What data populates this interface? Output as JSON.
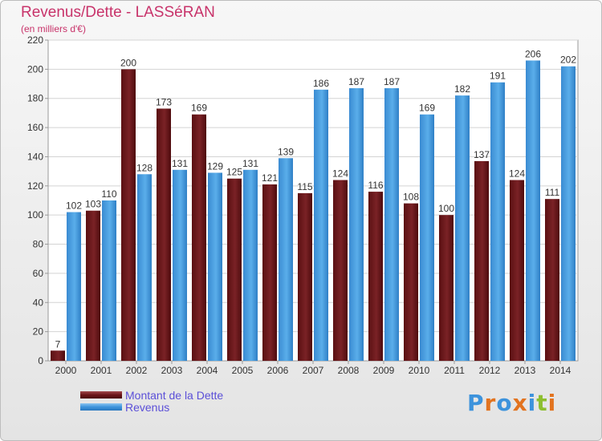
{
  "chart_data": {
    "type": "bar",
    "title": "Revenus/Dette - LASSéRAN",
    "subtitle": "(en milliers d'€)",
    "categories": [
      "2000",
      "2001",
      "2002",
      "2003",
      "2004",
      "2005",
      "2006",
      "2007",
      "2008",
      "2009",
      "2010",
      "2011",
      "2012",
      "2013",
      "2014"
    ],
    "series": [
      {
        "name": "Montant de la Dette",
        "color": "#6b1518",
        "values": [
          7,
          103,
          200,
          173,
          169,
          125,
          121,
          115,
          124,
          116,
          108,
          100,
          137,
          124,
          111
        ]
      },
      {
        "name": "Revenus",
        "color": "#3d93dc",
        "values": [
          102,
          110,
          128,
          131,
          129,
          131,
          139,
          186,
          187,
          187,
          169,
          182,
          191,
          206,
          202
        ]
      }
    ],
    "ylim": [
      0,
      220
    ],
    "yticks": [
      0,
      20,
      40,
      60,
      80,
      100,
      120,
      140,
      160,
      180,
      200,
      220
    ],
    "grid": true,
    "legend_position": "bottom-left"
  },
  "legend": {
    "debt_label": "Montant de la Dette",
    "revenue_label": "Revenus"
  },
  "logo": {
    "text": "Proxiti",
    "letter_colors": [
      "#3d93dc",
      "#e2731f",
      "#3d93dc",
      "#e2731f",
      "#3d93dc",
      "#8dbf2f",
      "#e2731f"
    ]
  }
}
